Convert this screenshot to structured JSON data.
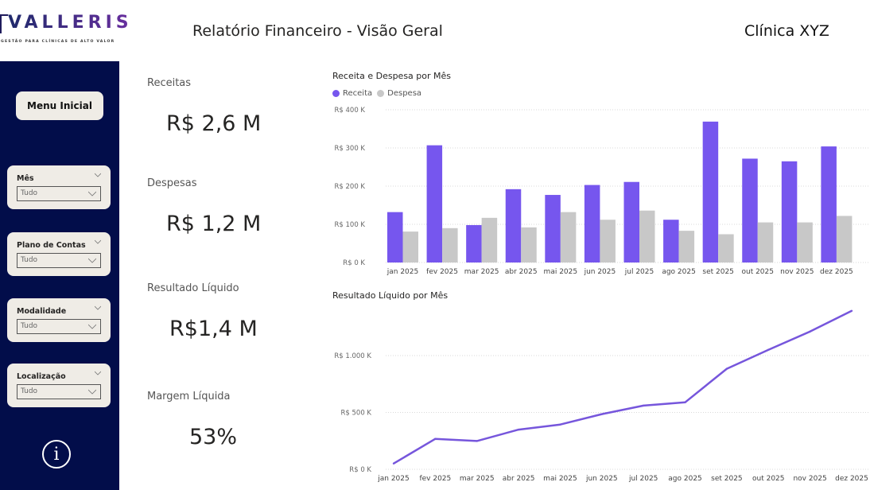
{
  "logo": {
    "name": "VALLERIS",
    "tagline": "GESTÃO PARA CLÍNICAS DE ALTO VALOR"
  },
  "header": {
    "title": "Relatório Financeiro - Visão Geral",
    "client": "Clínica XYZ"
  },
  "sidebar": {
    "menu_button": "Menu Inicial",
    "slicers": [
      {
        "label": "Mês",
        "value": "Tudo"
      },
      {
        "label": "Plano de Contas",
        "value": "Tudo"
      },
      {
        "label": "Modalidade",
        "value": "Tudo"
      },
      {
        "label": "Localização",
        "value": "Tudo"
      }
    ],
    "info_icon": "i"
  },
  "kpis": [
    {
      "label": "Receitas",
      "value": "R$ 2,6 M"
    },
    {
      "label": "Despesas",
      "value": "R$ 1,2 M"
    },
    {
      "label": "Resultado Líquido",
      "value": "R$1,4 M"
    },
    {
      "label": "Margem Líquida",
      "value": "53%"
    }
  ],
  "colors": {
    "receita": "#7656ee",
    "despesa": "#c8c8c8",
    "line": "#7656dc",
    "sidebar": "#020d4a"
  },
  "chart_data": [
    {
      "type": "bar",
      "title": "Receita e Despesa por Mês",
      "legend_position": "top-left",
      "categories": [
        "jan 2025",
        "fev 2025",
        "mar 2025",
        "abr 2025",
        "mai 2025",
        "jun 2025",
        "jul 2025",
        "ago 2025",
        "set 2025",
        "out 2025",
        "nov 2025",
        "dez 2025"
      ],
      "series": [
        {
          "name": "Receita",
          "values": [
            132,
            307,
            98,
            192,
            177,
            203,
            211,
            112,
            369,
            272,
            265,
            304
          ]
        },
        {
          "name": "Despesa",
          "values": [
            81,
            90,
            117,
            92,
            132,
            112,
            136,
            83,
            74,
            105,
            105,
            122
          ]
        }
      ],
      "unit": "R$ K",
      "ylim": [
        0,
        400
      ],
      "yticks": [
        0,
        100,
        200,
        300,
        400
      ],
      "ytick_labels": [
        "R$ 0 K",
        "R$ 100 K",
        "R$ 200 K",
        "R$ 300 K",
        "R$ 400 K"
      ],
      "grid": true
    },
    {
      "type": "line",
      "title": "Resultado Líquido por Mês",
      "categories": [
        "jan 2025",
        "fev 2025",
        "mar 2025",
        "abr 2025",
        "mai 2025",
        "jun 2025",
        "jul 2025",
        "ago 2025",
        "set 2025",
        "out 2025",
        "nov 2025",
        "dez 2025"
      ],
      "series": [
        {
          "name": "Resultado Líquido",
          "values": [
            51,
            268,
            249,
            349,
            394,
            485,
            560,
            589,
            884,
            1051,
            1211,
            1393
          ]
        }
      ],
      "unit": "R$ K",
      "ylim": [
        0,
        1400
      ],
      "yticks": [
        0,
        500,
        1000
      ],
      "ytick_labels": [
        "R$ 0 K",
        "R$ 500 K",
        "R$ 1.000 K"
      ],
      "grid": true
    }
  ]
}
